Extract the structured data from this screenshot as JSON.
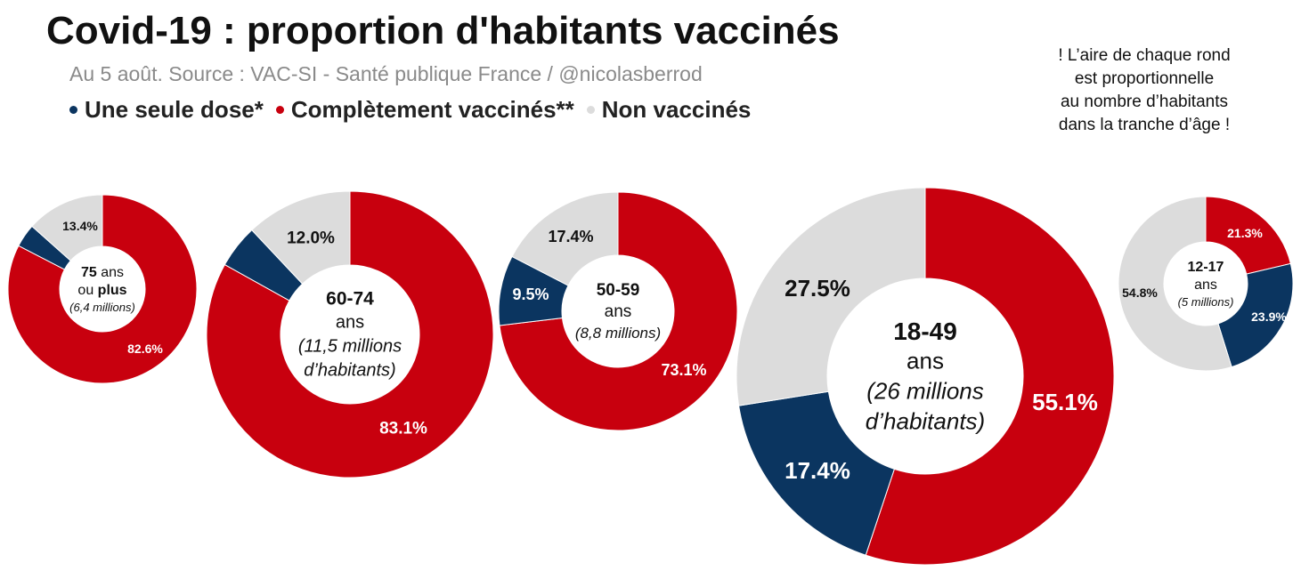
{
  "title": "Covid-19 : proportion d'habitants vaccinés",
  "subtitle": "Au 5 août. Source : VAC-SI - Santé publique France / @nicolasberrod",
  "legend": [
    {
      "label": "Une seule dose*",
      "color": "#0b3560"
    },
    {
      "label": "Complètement vaccinés**",
      "color": "#c8000e"
    },
    {
      "label": "Non vaccinés",
      "color": "#dcdcdc"
    }
  ],
  "note_lines": [
    "! L’aire de chaque rond",
    "est proportionnelle",
    "au nombre d’habitants",
    "dans la tranche d’âge !"
  ],
  "colors": {
    "one_dose": "#0b3560",
    "complete": "#c8000e",
    "unvaccinated": "#dcdcdc"
  },
  "chart_data": {
    "type": "donut",
    "series_names": [
      "Une seule dose*",
      "Complètement vaccinés**",
      "Non vaccinés"
    ],
    "charts": [
      {
        "age_group": "75 ans ou plus",
        "population": "6,4 millions",
        "center_lines": [
          {
            "parts": [
              {
                "text": "75",
                "weight": "bold"
              },
              {
                "text": " ans",
                "weight": "normal"
              }
            ],
            "style": "normal"
          },
          {
            "parts": [
              {
                "text": "ou ",
                "weight": "normal"
              },
              {
                "text": "plus",
                "weight": "bold"
              }
            ],
            "style": "normal"
          },
          {
            "parts": [
              {
                "text": "(6,4 millions)",
                "weight": "normal"
              }
            ],
            "style": "italic",
            "size": "small"
          }
        ],
        "values": {
          "complete": 82.6,
          "one_dose": 4.0,
          "unvaccinated": 13.4
        },
        "labels": {
          "complete": "82.6%",
          "one_dose": "",
          "unvaccinated": "13.4%"
        }
      },
      {
        "age_group": "60-74 ans",
        "population": "11,5 millions d’habitants",
        "center_lines": [
          {
            "parts": [
              {
                "text": "60-74",
                "weight": "bold"
              }
            ],
            "style": "normal"
          },
          {
            "parts": [
              {
                "text": "ans",
                "weight": "normal"
              }
            ],
            "style": "normal"
          },
          {
            "parts": [
              {
                "text": "(11,5 millions",
                "weight": "normal"
              }
            ],
            "style": "italic"
          },
          {
            "parts": [
              {
                "text": "d’habitants)",
                "weight": "normal"
              }
            ],
            "style": "italic"
          }
        ],
        "values": {
          "complete": 83.1,
          "one_dose": 4.9,
          "unvaccinated": 12.0
        },
        "labels": {
          "complete": "83.1%",
          "one_dose": "",
          "unvaccinated": "12.0%"
        }
      },
      {
        "age_group": "50-59 ans",
        "population": "8,8 millions",
        "center_lines": [
          {
            "parts": [
              {
                "text": "50-59",
                "weight": "bold"
              }
            ],
            "style": "normal"
          },
          {
            "parts": [
              {
                "text": "ans",
                "weight": "normal"
              }
            ],
            "style": "normal"
          },
          {
            "parts": [
              {
                "text": "(8,8 millions)",
                "weight": "normal"
              }
            ],
            "style": "italic"
          }
        ],
        "values": {
          "complete": 73.1,
          "one_dose": 9.5,
          "unvaccinated": 17.4
        },
        "labels": {
          "complete": "73.1%",
          "one_dose": "9.5%",
          "unvaccinated": "17.4%"
        }
      },
      {
        "age_group": "18-49 ans",
        "population": "26 millions d’habitants",
        "center_lines": [
          {
            "parts": [
              {
                "text": "18-49",
                "weight": "bold"
              }
            ],
            "style": "normal"
          },
          {
            "parts": [
              {
                "text": "ans",
                "weight": "normal"
              }
            ],
            "style": "normal"
          },
          {
            "parts": [
              {
                "text": "(26 millions",
                "weight": "normal"
              }
            ],
            "style": "italic"
          },
          {
            "parts": [
              {
                "text": "d’habitants)",
                "weight": "normal"
              }
            ],
            "style": "italic"
          }
        ],
        "values": {
          "complete": 55.1,
          "one_dose": 17.4,
          "unvaccinated": 27.5
        },
        "labels": {
          "complete": "55.1%",
          "one_dose": "17.4%",
          "unvaccinated": "27.5%"
        }
      },
      {
        "age_group": "12-17 ans",
        "population": "5 millions",
        "center_lines": [
          {
            "parts": [
              {
                "text": "12-17",
                "weight": "bold"
              }
            ],
            "style": "normal"
          },
          {
            "parts": [
              {
                "text": "ans",
                "weight": "normal"
              }
            ],
            "style": "normal"
          },
          {
            "parts": [
              {
                "text": "(5 millions)",
                "weight": "normal"
              }
            ],
            "style": "italic",
            "size": "small"
          }
        ],
        "values": {
          "complete": 21.3,
          "one_dose": 23.9,
          "unvaccinated": 54.8
        },
        "labels": {
          "complete": "21.3%",
          "one_dose": "23.9%",
          "unvaccinated": "54.8%"
        }
      }
    ]
  }
}
